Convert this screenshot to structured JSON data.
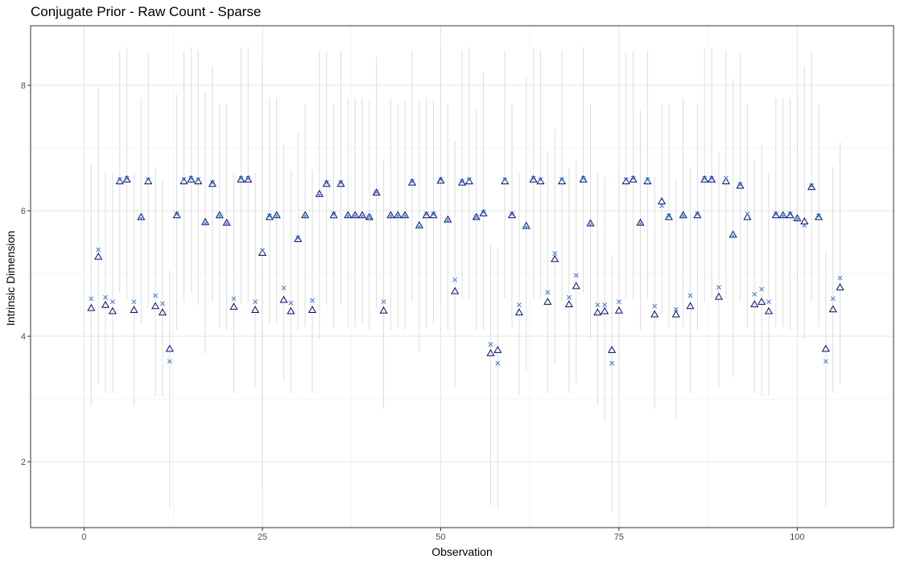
{
  "chart_data": {
    "type": "scatter",
    "title": "Conjugate Prior - Raw Count - Sparse",
    "xlabel": "Observation",
    "ylabel": "Intrinsic Dimension",
    "xlim": [
      -7.5,
      113.5
    ],
    "ylim": [
      0.95,
      8.95
    ],
    "x_ticks": [
      0,
      25,
      50,
      75,
      100
    ],
    "y_ticks": [
      2,
      4,
      6,
      8
    ],
    "grid": true,
    "legend": "none",
    "colors": {
      "interval": "#dcdcdc",
      "triangle": "#0b0b6e",
      "cross": "#3a7dd8",
      "grid_major": "#e6e6e6",
      "grid_minor": "#f3f3f3",
      "panel_border": "#333333"
    },
    "series": [
      {
        "marker": "triangle",
        "x": [
          1,
          2,
          3,
          4,
          5,
          6,
          7,
          8,
          9,
          10,
          11,
          12,
          13,
          14,
          15,
          16,
          17,
          18,
          19,
          20,
          21,
          22,
          23,
          24,
          25,
          26,
          27,
          28,
          29,
          30,
          31,
          32,
          33,
          34,
          35,
          36,
          37,
          38,
          39,
          40,
          41,
          42,
          43,
          44,
          45,
          46,
          47,
          48,
          49,
          50,
          51,
          52,
          53,
          54,
          55,
          56,
          57,
          58,
          59,
          60,
          61,
          62,
          63,
          64,
          65,
          66,
          67,
          68,
          69,
          70,
          71,
          72,
          73,
          74,
          75,
          76,
          77,
          78,
          79,
          80,
          81,
          82,
          83,
          84,
          85,
          86,
          87,
          88,
          89,
          90,
          91,
          92,
          93,
          94,
          95,
          96,
          97,
          98,
          99,
          100,
          101,
          102,
          103,
          104,
          105,
          106
        ],
        "values": [
          4.45,
          5.27,
          4.5,
          4.4,
          6.47,
          6.5,
          4.42,
          5.9,
          6.47,
          4.48,
          4.38,
          3.8,
          5.93,
          6.47,
          6.5,
          6.47,
          5.82,
          6.43,
          5.93,
          5.81,
          4.47,
          6.5,
          6.5,
          4.42,
          5.33,
          5.9,
          5.93,
          4.58,
          4.4,
          5.55,
          5.93,
          4.42,
          6.27,
          6.43,
          5.93,
          6.43,
          5.93,
          5.93,
          5.93,
          5.9,
          6.29,
          4.41,
          5.93,
          5.93,
          5.93,
          6.45,
          5.77,
          5.93,
          5.93,
          6.48,
          5.86,
          4.72,
          6.45,
          6.47,
          5.9,
          5.96,
          3.73,
          3.78,
          6.47,
          5.93,
          4.38,
          5.76,
          6.5,
          6.47,
          4.55,
          5.23,
          6.47,
          4.51,
          4.8,
          6.5,
          5.8,
          4.38,
          4.4,
          3.78,
          4.41,
          6.47,
          6.5,
          5.81,
          6.47,
          4.35,
          6.15,
          5.9,
          4.35,
          5.93,
          4.48,
          5.93,
          6.5,
          6.5,
          4.63,
          6.47,
          5.62,
          6.4,
          5.9,
          4.51,
          4.55,
          4.4,
          5.93,
          5.93,
          5.93,
          5.88,
          5.83,
          6.38,
          5.9,
          3.8,
          4.43,
          4.78
        ]
      },
      {
        "marker": "cross",
        "x": [
          1,
          2,
          3,
          4,
          5,
          6,
          7,
          8,
          9,
          10,
          11,
          12,
          13,
          14,
          15,
          16,
          17,
          18,
          19,
          20,
          21,
          22,
          23,
          24,
          25,
          26,
          27,
          28,
          29,
          30,
          31,
          32,
          33,
          34,
          35,
          36,
          37,
          38,
          39,
          40,
          41,
          42,
          43,
          44,
          45,
          46,
          47,
          48,
          49,
          50,
          51,
          52,
          53,
          54,
          55,
          56,
          57,
          58,
          59,
          60,
          61,
          62,
          63,
          64,
          65,
          66,
          67,
          68,
          69,
          70,
          71,
          72,
          73,
          74,
          75,
          76,
          77,
          78,
          79,
          80,
          81,
          82,
          83,
          84,
          85,
          86,
          87,
          88,
          89,
          90,
          91,
          92,
          93,
          94,
          95,
          96,
          97,
          98,
          99,
          100,
          101,
          102,
          103,
          104,
          105,
          106
        ],
        "values": [
          4.6,
          5.38,
          4.62,
          4.55,
          6.5,
          6.52,
          4.55,
          5.88,
          6.5,
          4.65,
          4.52,
          3.6,
          5.95,
          6.5,
          6.52,
          6.5,
          5.8,
          6.45,
          5.92,
          5.8,
          4.6,
          6.52,
          6.52,
          4.55,
          5.37,
          5.92,
          5.92,
          4.77,
          4.53,
          5.57,
          5.92,
          4.57,
          6.25,
          6.45,
          5.95,
          6.45,
          5.92,
          5.92,
          5.92,
          5.9,
          6.3,
          4.55,
          5.92,
          5.92,
          5.92,
          6.47,
          5.75,
          5.95,
          5.95,
          6.5,
          5.85,
          4.9,
          6.47,
          6.5,
          5.9,
          5.98,
          3.87,
          3.57,
          6.5,
          5.95,
          4.5,
          5.74,
          6.52,
          6.5,
          4.7,
          5.32,
          6.5,
          4.62,
          4.97,
          6.52,
          5.78,
          4.5,
          4.5,
          3.57,
          4.55,
          6.5,
          6.52,
          5.8,
          6.5,
          4.48,
          6.08,
          5.92,
          4.43,
          5.92,
          4.65,
          5.95,
          6.52,
          6.52,
          4.78,
          6.52,
          5.6,
          6.42,
          5.95,
          4.67,
          4.75,
          4.55,
          5.95,
          5.92,
          5.95,
          5.87,
          5.77,
          6.4,
          5.92,
          3.6,
          4.6,
          4.93
        ]
      }
    ],
    "intervals": {
      "x": [
        1,
        2,
        3,
        4,
        5,
        6,
        7,
        8,
        9,
        10,
        11,
        12,
        13,
        14,
        15,
        16,
        17,
        18,
        19,
        20,
        21,
        22,
        23,
        24,
        25,
        26,
        27,
        28,
        29,
        30,
        31,
        32,
        33,
        34,
        35,
        36,
        37,
        38,
        39,
        40,
        41,
        42,
        43,
        44,
        45,
        46,
        47,
        48,
        49,
        50,
        51,
        52,
        53,
        54,
        55,
        56,
        57,
        58,
        59,
        60,
        61,
        62,
        63,
        64,
        65,
        66,
        67,
        68,
        69,
        70,
        71,
        72,
        73,
        74,
        75,
        76,
        77,
        78,
        79,
        80,
        81,
        82,
        83,
        84,
        85,
        86,
        87,
        88,
        89,
        90,
        91,
        92,
        93,
        94,
        95,
        96,
        97,
        98,
        99,
        100,
        101,
        102,
        103,
        104,
        105,
        106
      ],
      "low": [
        2.9,
        3.25,
        3.1,
        3.1,
        4.7,
        4.6,
        2.9,
        4.2,
        4.45,
        3.05,
        3.05,
        1.28,
        4.1,
        4.55,
        4.7,
        4.5,
        3.72,
        4.55,
        4.15,
        4.1,
        3.1,
        4.5,
        4.55,
        3.2,
        1.55,
        4.2,
        4.2,
        3.3,
        3.1,
        4.1,
        4.15,
        3.1,
        3.95,
        4.5,
        4.15,
        4.5,
        4.15,
        4.15,
        4.2,
        4.1,
        4.45,
        2.85,
        4.1,
        4.15,
        4.1,
        4.55,
        3.75,
        4.15,
        4.2,
        4.55,
        4.1,
        3.2,
        4.6,
        4.6,
        4.1,
        4.1,
        1.3,
        1.25,
        4.6,
        4.15,
        3.05,
        3.45,
        4.6,
        4.6,
        3.1,
        3.55,
        4.55,
        3.1,
        3.25,
        4.7,
        3.95,
        2.9,
        2.65,
        1.22,
        3.05,
        4.6,
        4.6,
        4.1,
        4.6,
        2.85,
        4.35,
        4.15,
        2.68,
        4.15,
        3.1,
        4.1,
        4.55,
        4.6,
        3.2,
        4.6,
        3.35,
        4.55,
        4.15,
        3.1,
        3.05,
        3.05,
        4.15,
        4.15,
        4.1,
        4.1,
        3.95,
        4.55,
        4.15,
        1.28,
        3.1,
        3.25
      ],
      "high": [
        6.75,
        7.95,
        6.6,
        6.6,
        8.55,
        8.6,
        6.6,
        7.8,
        8.5,
        6.7,
        6.5,
        5.05,
        7.85,
        8.55,
        8.6,
        8.55,
        7.9,
        8.3,
        7.7,
        7.7,
        6.6,
        8.6,
        8.6,
        6.6,
        8.4,
        7.8,
        7.8,
        7.05,
        6.65,
        7.25,
        7.7,
        6.65,
        8.55,
        8.55,
        7.7,
        8.55,
        7.8,
        7.8,
        7.8,
        7.75,
        8.45,
        6.8,
        7.8,
        7.7,
        7.75,
        8.55,
        7.75,
        7.8,
        7.75,
        8.55,
        7.7,
        7.1,
        8.55,
        8.6,
        7.6,
        8.2,
        5.45,
        5.4,
        8.55,
        7.7,
        6.6,
        8.15,
        8.6,
        8.55,
        6.95,
        7.3,
        8.55,
        6.7,
        6.8,
        8.6,
        7.7,
        6.6,
        6.55,
        5.3,
        6.6,
        8.5,
        8.55,
        7.6,
        8.55,
        6.55,
        7.7,
        7.7,
        6.5,
        7.8,
        6.7,
        7.7,
        8.6,
        8.6,
        6.95,
        8.55,
        8.1,
        8.5,
        7.7,
        6.8,
        7.05,
        6.6,
        7.8,
        7.8,
        7.8,
        7.8,
        8.3,
        8.55,
        7.7,
        5.35,
        6.7,
        7.1
      ]
    }
  }
}
